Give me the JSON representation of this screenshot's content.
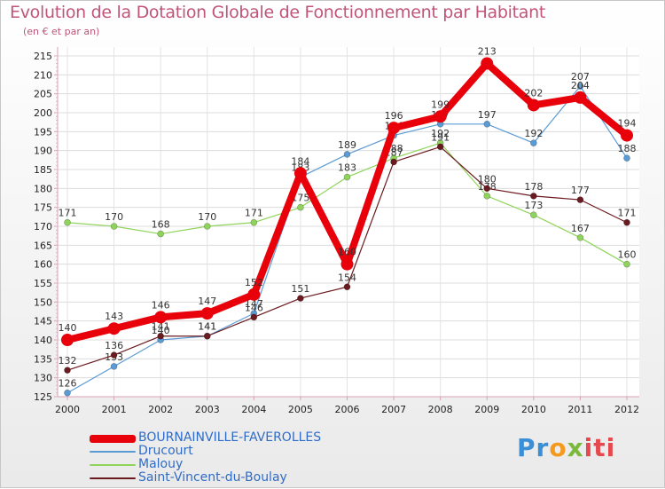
{
  "header": {
    "title": "Evolution de la Dotation Globale de Fonctionnement par Habitant",
    "subtitle": "(en € et par an)"
  },
  "logo": {
    "parts": [
      "Pr",
      "o",
      "x",
      "iti"
    ]
  },
  "chart_data": {
    "type": "line",
    "x": [
      2000,
      2001,
      2002,
      2003,
      2004,
      2005,
      2006,
      2007,
      2008,
      2009,
      2010,
      2011,
      2012
    ],
    "ylim": [
      125,
      215
    ],
    "yticks": [
      125,
      130,
      135,
      140,
      145,
      150,
      155,
      160,
      165,
      170,
      175,
      180,
      185,
      190,
      195,
      200,
      205,
      210,
      215
    ],
    "grid": true,
    "legend_position": "bottom-left",
    "series": [
      {
        "name": "BOURNAINVILLE-FAVEROLLES",
        "color": "#e8000b",
        "values": [
          140,
          143,
          146,
          147,
          152,
          184,
          160,
          196,
          199,
          213,
          202,
          204,
          194
        ]
      },
      {
        "name": "Drucourt",
        "color": "#5b9bd5",
        "values": [
          126,
          133,
          140,
          141,
          147,
          183,
          189,
          194,
          197,
          197,
          192,
          207,
          188
        ]
      },
      {
        "name": "Malouy",
        "color": "#8fd45a",
        "values": [
          171,
          170,
          168,
          170,
          171,
          175,
          183,
          188,
          192,
          178,
          173,
          167,
          160
        ]
      },
      {
        "name": "Saint-Vincent-du-Boulay",
        "color": "#6b1a1f",
        "values": [
          132,
          136,
          141,
          141,
          146,
          151,
          154,
          187,
          191,
          180,
          178,
          177,
          171
        ]
      }
    ]
  }
}
